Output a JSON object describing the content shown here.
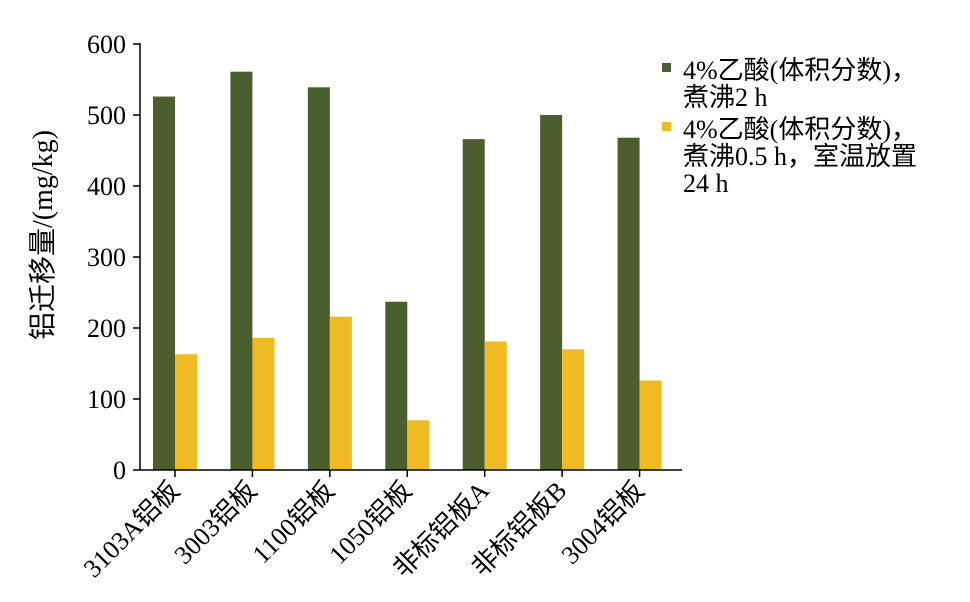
{
  "chart_data": {
    "type": "bar",
    "title": "",
    "xlabel": "",
    "ylabel": "铝迁移量/(mg/kg)",
    "ylim": [
      0,
      600
    ],
    "yticks": [
      0,
      100,
      200,
      300,
      400,
      500,
      600
    ],
    "grid": false,
    "legend_position": "top-right",
    "categories": [
      "3103A铝板",
      "3003铝板",
      "1100铝板",
      "1050铝板",
      "非标铝板A",
      "非标铝板B",
      "3004铝板"
    ],
    "series": [
      {
        "name": "4%乙酸(体积分数)，煮沸2 h",
        "legend_lines": [
          "4%乙酸(体积分数)，",
          "煮沸2 h"
        ],
        "color": "#4a5e2e",
        "values": [
          526,
          561,
          539,
          237,
          466,
          500,
          468
        ]
      },
      {
        "name": "4%乙酸(体积分数)，煮沸0.5 h，室温放置24 h",
        "legend_lines": [
          "4%乙酸(体积分数)，",
          "煮沸0.5 h，室温放置",
          "24 h"
        ],
        "color": "#f0bb22",
        "values": [
          163,
          186,
          216,
          70,
          181,
          170,
          126
        ]
      }
    ]
  }
}
